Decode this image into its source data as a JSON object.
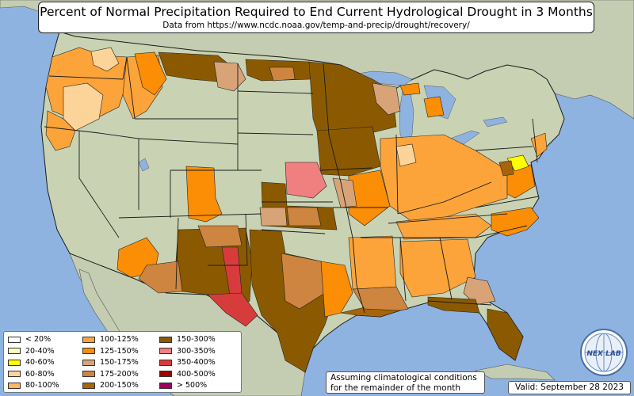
{
  "title": "Percent of Normal Precipitation Required to End Current Hydrological Drought in 3 Months",
  "subtitle": "Data from https://www.ncdc.noaa.gov/temp-and-precip/drought/recovery/",
  "legend": {
    "items": [
      {
        "label": "< 20%",
        "color": "#ffffff"
      },
      {
        "label": "20-40%",
        "color": "#ffffc0"
      },
      {
        "label": "40-60%",
        "color": "#ffff00"
      },
      {
        "label": "60-80%",
        "color": "#fcd49a"
      },
      {
        "label": "80-100%",
        "color": "#fdb765"
      },
      {
        "label": "100-125%",
        "color": "#fca43a"
      },
      {
        "label": "125-150%",
        "color": "#fb8e05"
      },
      {
        "label": "150-175%",
        "color": "#d8a477"
      },
      {
        "label": "175-200%",
        "color": "#cd853f"
      },
      {
        "label": "200-150%",
        "color": "#a86408"
      },
      {
        "label": "150-300%",
        "color": "#8b5a00"
      },
      {
        "label": "300-350%",
        "color": "#f08080"
      },
      {
        "label": "350-400%",
        "color": "#d73c3c"
      },
      {
        "label": "400-500%",
        "color": "#a00000"
      },
      {
        "label": "> 500%",
        "color": "#a0005a"
      }
    ]
  },
  "note": {
    "line1": "Assuming climatological conditions",
    "line2": "for the remainder of the month"
  },
  "valid": "Valid: September 28 2023",
  "logo": {
    "label": "NEX LAB",
    "icon": "globe-icon"
  },
  "colors": {
    "ocean": "#8fb3e0",
    "land": "#c9d3b3",
    "foreign_land": "#c4cdb2",
    "lakes": "#8fb3e0",
    "borders": "#1a1a1a"
  }
}
